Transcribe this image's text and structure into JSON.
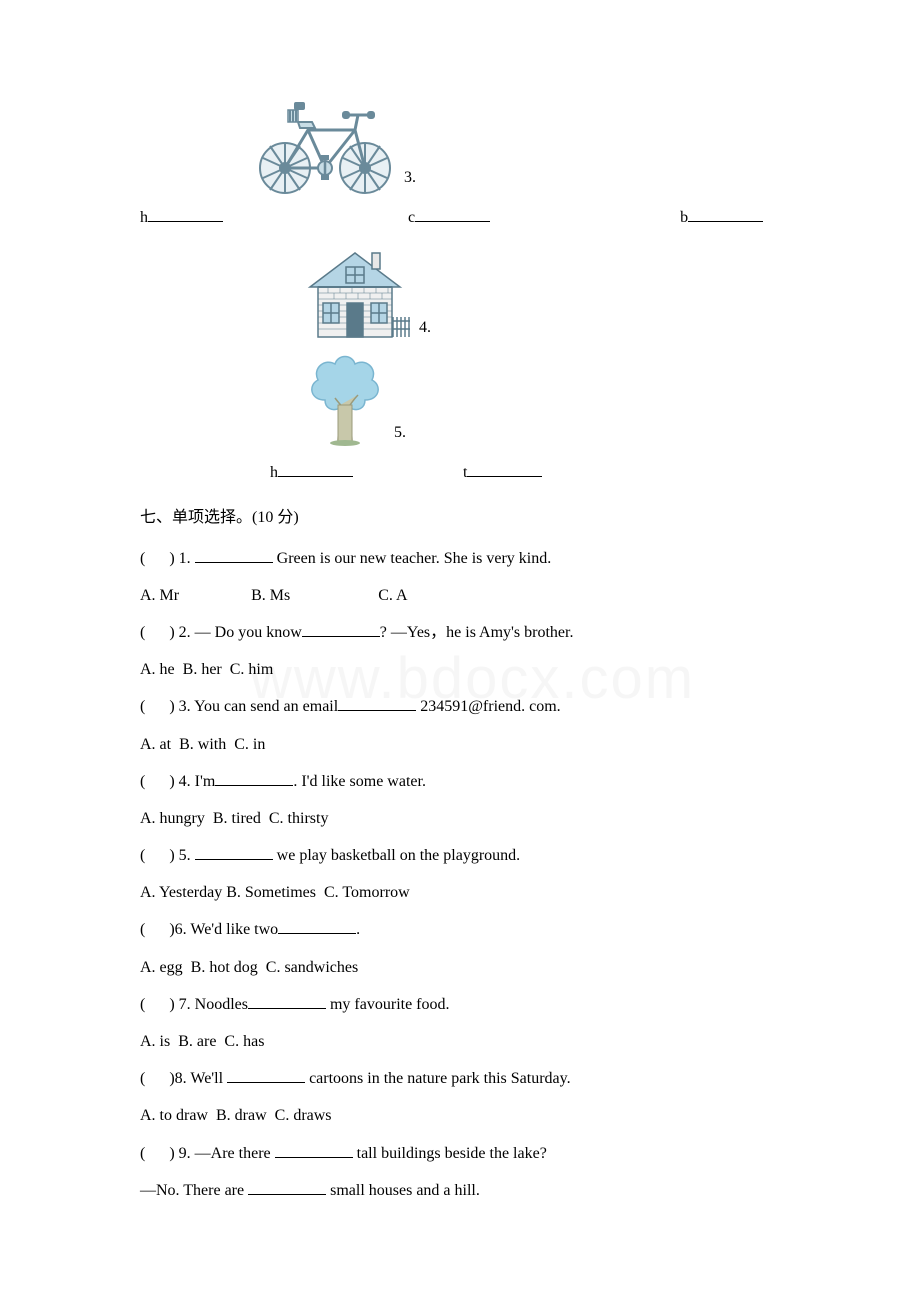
{
  "watermark": "www.bdocx.com",
  "images": {
    "bicycle": {
      "number": "3.",
      "outline_color": "#6a8a9a",
      "fill_color": "#c8dde6"
    },
    "house": {
      "number": "4.",
      "outline_color": "#5a7a8a",
      "fill_color": "#b5d5e5",
      "wall_color": "#e8e8e8"
    },
    "tree": {
      "number": "5.",
      "crown_color": "#a5d5e8",
      "trunk_color": "#c8c8aa"
    }
  },
  "blanks_row1": {
    "prefix1": "h",
    "prefix2": "c",
    "prefix3": "b",
    "spacing": [
      0,
      185,
      190
    ]
  },
  "blanks_row2": {
    "prefix1": "h",
    "prefix2": "t",
    "indent": 130,
    "spacing": 110
  },
  "section7": {
    "title": "七、单项选择。(10 分)",
    "questions": [
      {
        "num": "1",
        "text_before": "",
        "blank_after": " Green is our new teacher. She is very kind.",
        "options": "A. Mr                  B. Ms                      C. A"
      },
      {
        "num": "2",
        "text_before": "— Do you know",
        "blank_after": "? —Yes，he is Amy's brother.",
        "options": "A. he  B. her  C. him"
      },
      {
        "num": "3",
        "text_before": "You can send an email",
        "blank_after": " 234591@friend. com.",
        "options": "A. at  B. with  C. in"
      },
      {
        "num": "4",
        "text_before": "I'm",
        "blank_after": ". I'd like some water.",
        "options": "A. hungry  B. tired  C. thirsty"
      },
      {
        "num": "5",
        "text_before": "",
        "blank_after": " we play basketball on the playground.",
        "options": "A. Yesterday B. Sometimes  C. Tomorrow"
      },
      {
        "num": "6",
        "text_before": "We'd like two",
        "blank_after": ".",
        "options": "A. egg  B. hot dog  C. sandwiches",
        "no_space_before_num": true
      },
      {
        "num": "7",
        "text_before": "Noodles",
        "blank_after": " my favourite food.",
        "options": "A. is  B. are  C. has"
      },
      {
        "num": "8",
        "text_before": "We'll ",
        "blank_after": " cartoons in the nature park this Saturday.",
        "options": "A. to draw  B. draw  C. draws",
        "no_space_before_num": true
      },
      {
        "num": "9",
        "text_before": "—Are there ",
        "blank_after": " tall buildings beside the lake?",
        "second_line": "—No. There are ",
        "second_blank_after": " small houses and a hill."
      }
    ]
  }
}
